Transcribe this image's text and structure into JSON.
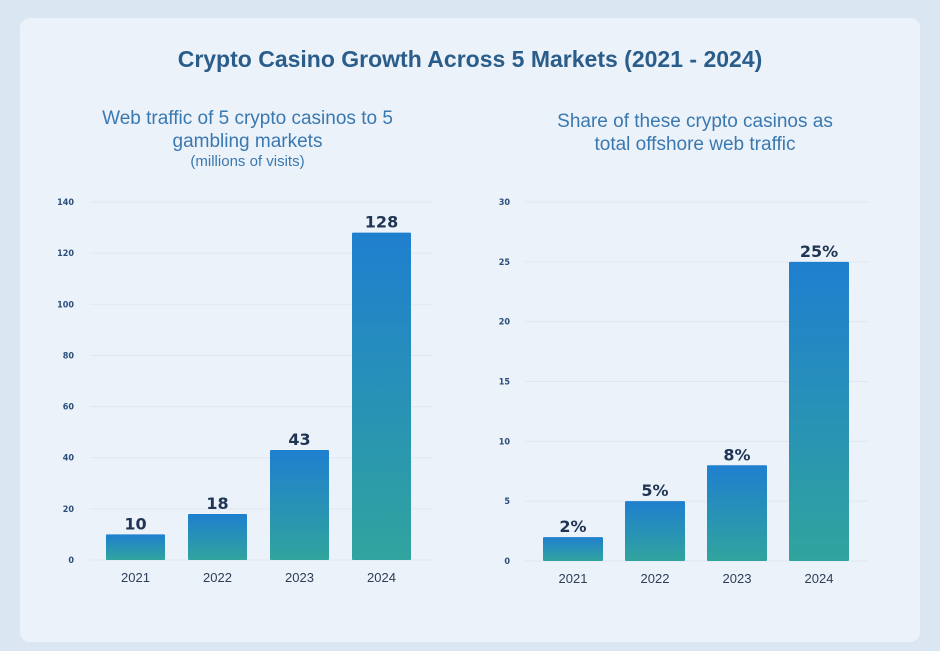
{
  "page": {
    "title": "Crypto Casino Growth Across 5 Markets (2021 - 2024)"
  },
  "colors": {
    "bar_top": "#1f7fcf",
    "bar_bottom": "#30a49e",
    "title": "#2a5d8a",
    "subtitle": "#3a78b0"
  },
  "chart_data": [
    {
      "type": "bar",
      "title": "Web traffic of 5 crypto casinos to 5 gambling markets",
      "subtitle": "(millions of visits)",
      "categories": [
        "2021",
        "2022",
        "2023",
        "2024"
      ],
      "values": [
        10,
        18,
        43,
        128
      ],
      "data_labels": [
        "10",
        "18",
        "43",
        "128"
      ],
      "yticks": [
        "0",
        "20",
        "40",
        "60",
        "80",
        "100",
        "120",
        "140"
      ],
      "ylim": [
        0,
        140
      ],
      "grid": true
    },
    {
      "type": "bar",
      "title": "Share of these crypto casinos as total offshore web traffic",
      "categories": [
        "2021",
        "2022",
        "2023",
        "2024"
      ],
      "values": [
        2,
        5,
        8,
        25
      ],
      "data_labels": [
        "2%",
        "5%",
        "8%",
        "25%"
      ],
      "yticks": [
        "0",
        "5",
        "10",
        "15",
        "20",
        "25",
        "30"
      ],
      "ylim": [
        0,
        30
      ],
      "grid": true
    }
  ]
}
